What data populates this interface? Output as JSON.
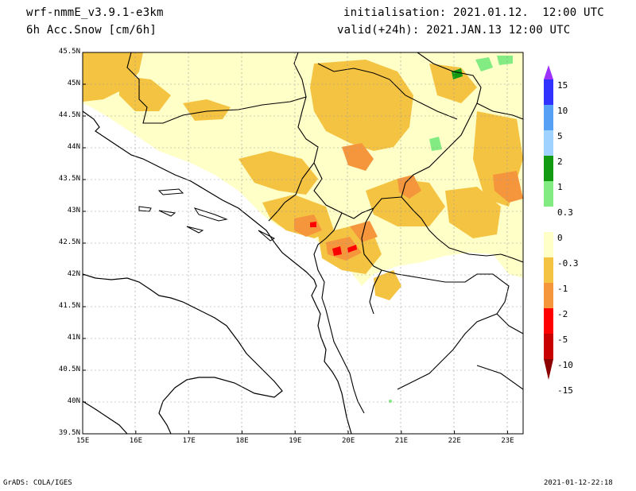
{
  "header": {
    "model": "wrf-nmmE_v3.9.1-e3km",
    "field": "6h Acc.Snow [cm/6h]",
    "init": "initialisation: 2021.01.12.  12:00 UTC",
    "valid": "valid(+24h): 2021.JAN.13 12:00 UTC"
  },
  "axes": {
    "lat_ticks": [
      "45.5N",
      "45N",
      "44.5N",
      "44N",
      "43.5N",
      "43N",
      "42.5N",
      "42N",
      "41.5N",
      "41N",
      "40.5N",
      "40N",
      "39.5N"
    ],
    "lon_ticks": [
      "15E",
      "16E",
      "17E",
      "18E",
      "19E",
      "20E",
      "21E",
      "22E",
      "23E"
    ]
  },
  "colorbar": {
    "labels": [
      "15",
      "10",
      "5",
      "2",
      "1",
      "0.3",
      "0",
      "-0.3",
      "-1",
      "-2",
      "-5",
      "-10",
      "-15"
    ],
    "colors": [
      "#9b30ff",
      "#3232ff",
      "#56a0f5",
      "#a0d2ff",
      "#139a13",
      "#82eb82",
      "#ffffff",
      "#ffffc8",
      "#f5c342",
      "#f5963c",
      "#ff0000",
      "#c80000",
      "#8b0000"
    ]
  },
  "footer": {
    "left": "GrADS: COLA/IGES",
    "right": "2021-01-12-22:18"
  }
}
